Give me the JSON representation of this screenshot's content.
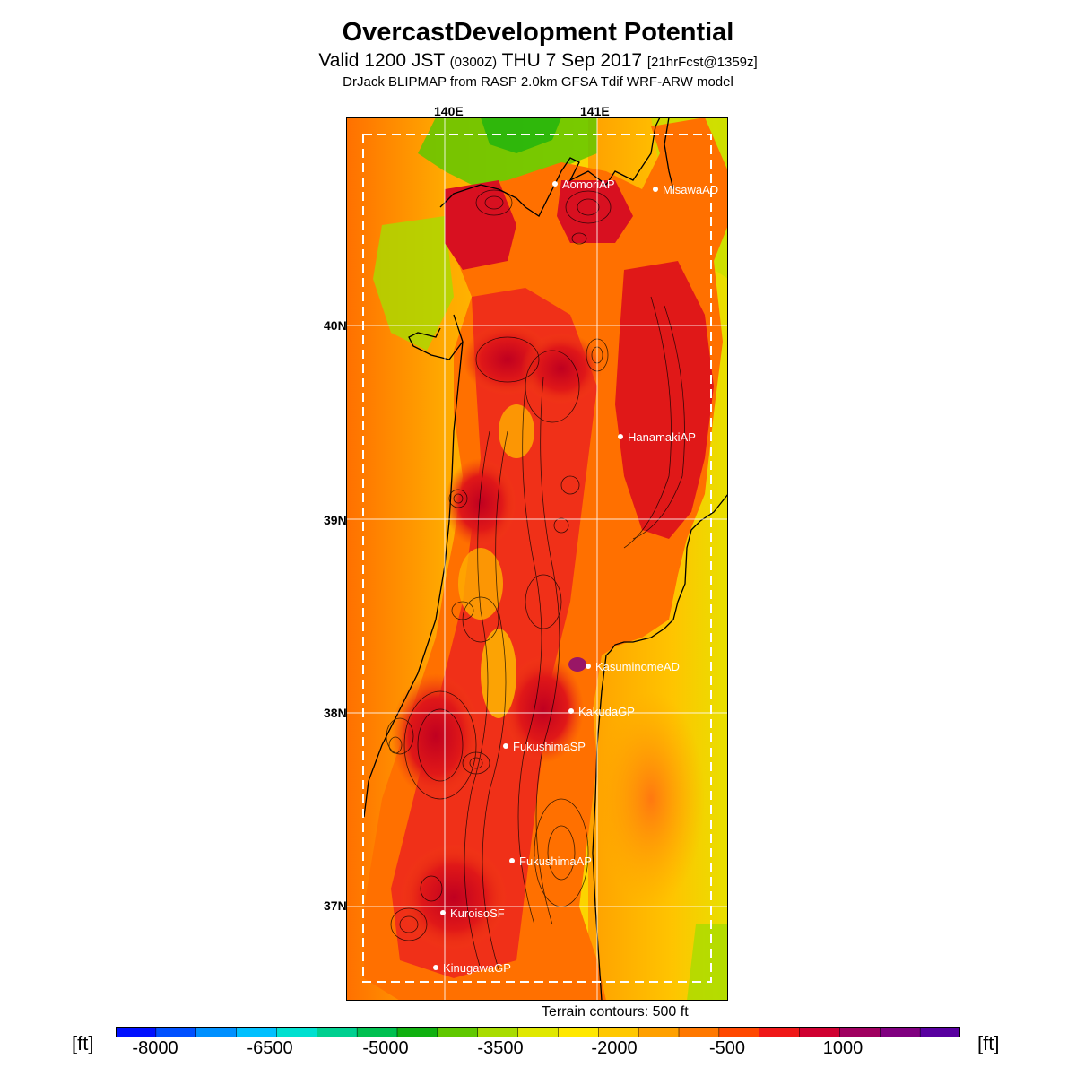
{
  "header": {
    "title": "OvercastDevelopment Potential",
    "subtitle_main": "Valid 1200 JST ",
    "subtitle_z": "(0300Z)",
    "subtitle_date": " THU 7 Sep 2017 ",
    "subtitle_fcst": "[21hrFcst@1359z]",
    "model_line": "DrJack BLIPMAP from RASP 2.0km GFSA Tdif WRF-ARW model"
  },
  "axes": {
    "lon_labels": [
      "140E",
      "141E"
    ],
    "lat_labels": [
      "40N",
      "39N",
      "38N",
      "37N"
    ]
  },
  "stations": [
    {
      "name": "AomoriAP"
    },
    {
      "name": "MisawaAD"
    },
    {
      "name": "HanamakiAP"
    },
    {
      "name": "KasuminomeAD"
    },
    {
      "name": "KakudaGP"
    },
    {
      "name": "FukushimaSP"
    },
    {
      "name": "FukushimaAP"
    },
    {
      "name": "KuroisoSF"
    },
    {
      "name": "KinugawaGP"
    }
  ],
  "terrain_note": "Terrain contours: 500 ft",
  "colorbar": {
    "unit": "[ft]",
    "tick_labels": [
      "-8000",
      "-6500",
      "-5000",
      "-3500",
      "-2000",
      "-500",
      "1000"
    ],
    "colors": [
      "#0010ff",
      "#0050ff",
      "#0090ff",
      "#00c0ff",
      "#00e0d0",
      "#00d090",
      "#00c050",
      "#10b010",
      "#60c800",
      "#a8dc00",
      "#e0e800",
      "#ffe800",
      "#ffc800",
      "#ffa000",
      "#ff7800",
      "#ff4800",
      "#f01818",
      "#d00030",
      "#a00060",
      "#800080",
      "#5800a0"
    ]
  }
}
